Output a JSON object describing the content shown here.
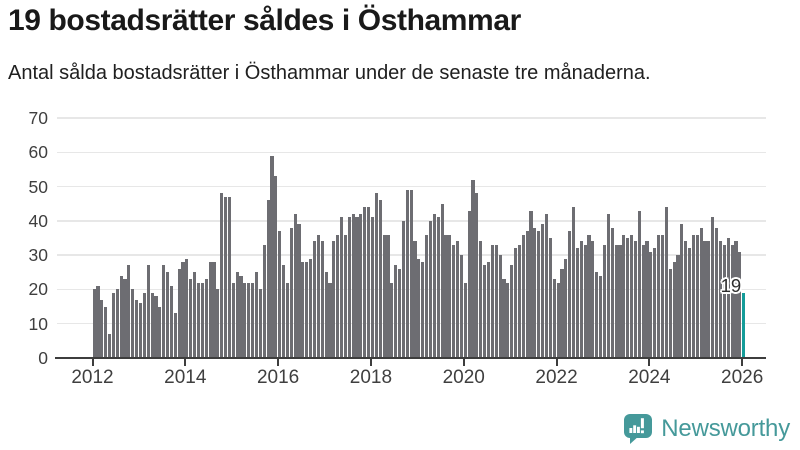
{
  "header": {
    "title": "19 bostadsrätter såldes i Östhammar",
    "subtitle": "Antal sålda bostadsrätter i Östhammar under de senaste tre månaderna."
  },
  "chart_data": {
    "type": "bar",
    "title": "19 bostadsrätter såldes i Östhammar",
    "subtitle": "Antal sålda bostadsrätter i Östhammar under de senaste tre månaderna.",
    "x_start": "2012-01",
    "x_end": "2026-01",
    "frequency": "monthly",
    "values": [
      20,
      21,
      17,
      15,
      7,
      19,
      20,
      24,
      23,
      27,
      20,
      17,
      16,
      19,
      27,
      19,
      18,
      15,
      27,
      25,
      21,
      13,
      26,
      28,
      29,
      23,
      25,
      22,
      22,
      23,
      28,
      28,
      20,
      48,
      47,
      47,
      22,
      25,
      24,
      22,
      22,
      22,
      25,
      20,
      33,
      46,
      59,
      53,
      37,
      27,
      22,
      38,
      42,
      39,
      28,
      28,
      29,
      34,
      36,
      34,
      25,
      22,
      34,
      36,
      41,
      36,
      41,
      42,
      41,
      42,
      44,
      44,
      41,
      48,
      46,
      36,
      36,
      22,
      27,
      26,
      40,
      49,
      49,
      34,
      29,
      28,
      36,
      40,
      42,
      41,
      45,
      36,
      36,
      33,
      34,
      30,
      22,
      43,
      52,
      48,
      34,
      27,
      28,
      33,
      33,
      30,
      23,
      22,
      27,
      32,
      33,
      36,
      37,
      43,
      38,
      37,
      39,
      42,
      35,
      23,
      22,
      26,
      29,
      37,
      44,
      32,
      34,
      33,
      36,
      34,
      25,
      24,
      33,
      42,
      38,
      33,
      33,
      36,
      35,
      36,
      34,
      43,
      33,
      34,
      31,
      32,
      36,
      36,
      44,
      26,
      28,
      30,
      39,
      34,
      32,
      36,
      36,
      38,
      34,
      34,
      41,
      38,
      34,
      33,
      35,
      33,
      34,
      31,
      19
    ],
    "highlight_last": true,
    "highlight_value_label": "19",
    "bar_color": "#6d6d72",
    "highlight_color": "#149c99",
    "ylim": [
      0,
      70
    ],
    "yticks": [
      0,
      10,
      20,
      30,
      40,
      50,
      60,
      70
    ],
    "xticks": [
      2012,
      2014,
      2016,
      2018,
      2020,
      2022,
      2024,
      2026
    ],
    "grid": true,
    "legend": false
  },
  "branding": {
    "logo_text": "Newsworthy",
    "logo_color": "#45999a"
  }
}
